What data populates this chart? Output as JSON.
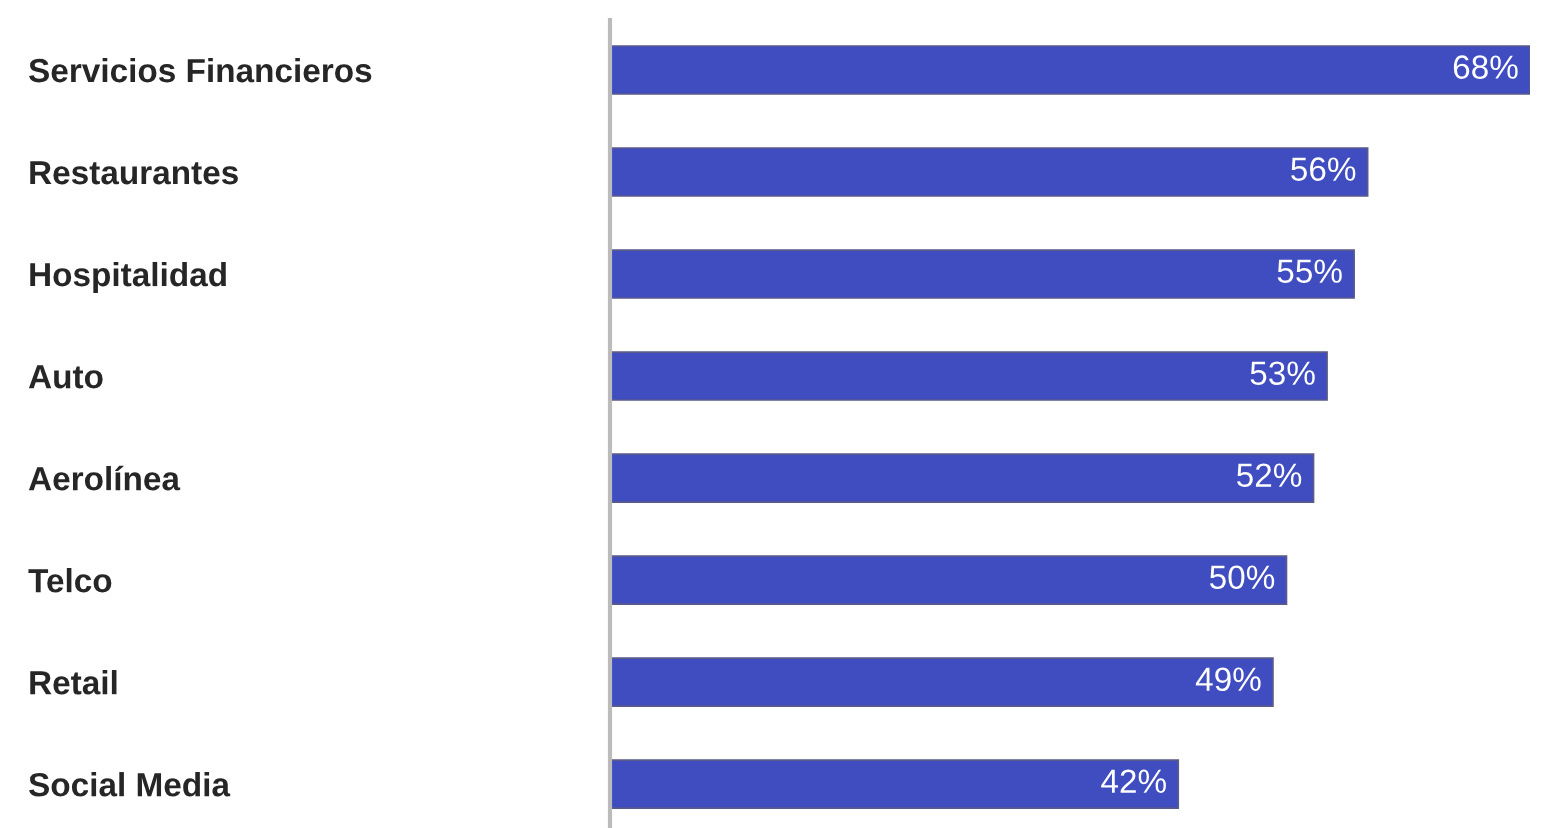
{
  "chart_data": {
    "type": "bar",
    "orientation": "horizontal",
    "categories": [
      "Servicios Financieros",
      "Restaurantes",
      "Hospitalidad",
      "Auto",
      "Aerolínea",
      "Telco",
      "Retail",
      "Social Media"
    ],
    "values": [
      68,
      56,
      55,
      53,
      52,
      50,
      49,
      42
    ],
    "value_labels": [
      "68%",
      "56%",
      "55%",
      "53%",
      "52%",
      "50%",
      "49%",
      "42%"
    ],
    "color": "#3f4dc1",
    "xlim": [
      0,
      68
    ],
    "tick_labels": "y",
    "grid": false,
    "legend": false
  }
}
